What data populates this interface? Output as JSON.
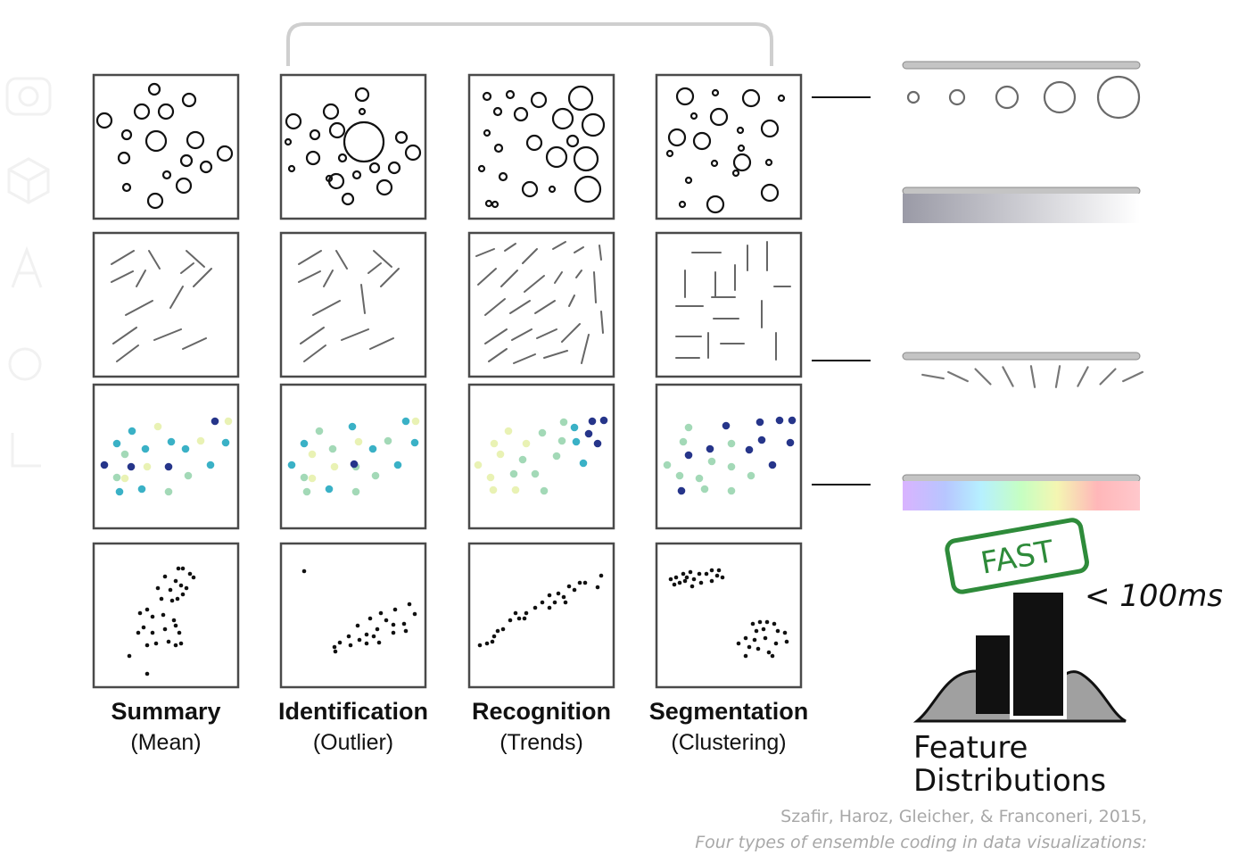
{
  "columns": [
    {
      "title": "Summary",
      "subtitle": "(Mean)"
    },
    {
      "title": "Identification",
      "subtitle": "(Outlier)"
    },
    {
      "title": "Recognition",
      "subtitle": "(Trends)"
    },
    {
      "title": "Segmentation",
      "subtitle": "(Clustering)"
    }
  ],
  "rows": [
    "size",
    "orientation",
    "color",
    "position"
  ],
  "legend": {
    "fast_stamp": "FAST",
    "latency": "< 100ms",
    "title_line1": "Feature",
    "title_line2": "Distributions"
  },
  "citation": {
    "authors": "Szafir, Haroz, Gleicher, & Franconeri, 2015,",
    "title": "Four types of ensemble coding in data visualizations:"
  },
  "colors": {
    "stamp_green": "#2e8b3a",
    "ink": "#111111",
    "hill_gray": "#a0a0a0",
    "dark_blue": "#26358a",
    "light_yellow": "#e9f2b4",
    "teal": "#3ab1c6",
    "mint": "#a3d9b7"
  }
}
